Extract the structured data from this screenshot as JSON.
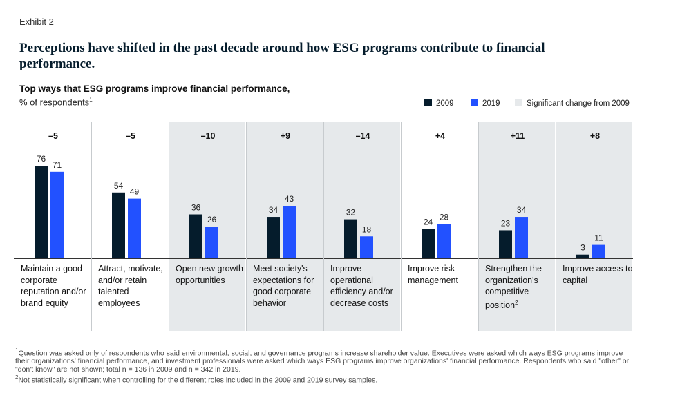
{
  "exhibit": "Exhibit 2",
  "title": "Perceptions have shifted in the past decade around how ESG programs contribute to financial performance.",
  "subtitle": "Top ways that ESG programs improve financial performance,",
  "unit": "% of respondents",
  "unit_note": "1",
  "legend": {
    "items": [
      {
        "name": "2009",
        "color": "#051c2c"
      },
      {
        "name": "2019",
        "color": "#2251ff"
      },
      {
        "name": "Significant change from 2009",
        "color": "#e6e9eb"
      }
    ]
  },
  "colors": {
    "series_2009": "#051c2c",
    "series_2019": "#2251ff",
    "highlight": "#e6e9eb",
    "axis": "#333333"
  },
  "chart_data": {
    "type": "bar",
    "ylim": [
      0,
      90
    ],
    "categories": [
      "Maintain a good corporate reputation and/or brand equity",
      "Attract, motivate, and/or retain talented employees",
      "Open new growth opportunities",
      "Meet society's expectations for good corporate behavior",
      "Improve operational efficiency and/or decrease costs",
      "Improve risk management",
      "Strengthen the organization's competitive position",
      "Improve access to capital"
    ],
    "category_notes": [
      "",
      "",
      "",
      "",
      "",
      "",
      "2",
      ""
    ],
    "series": [
      {
        "name": "2009",
        "values": [
          76,
          54,
          36,
          34,
          32,
          24,
          23,
          3
        ]
      },
      {
        "name": "2019",
        "values": [
          71,
          49,
          26,
          43,
          18,
          28,
          34,
          11
        ]
      }
    ],
    "changes": [
      "–5",
      "–5",
      "–10",
      "+9",
      "–14",
      "+4",
      "+11",
      "+8"
    ],
    "significant": [
      false,
      false,
      true,
      true,
      true,
      false,
      true,
      true
    ]
  },
  "footnotes": [
    {
      "mark": "1",
      "text": "Question was asked only of respondents who said environmental, social, and governance programs increase shareholder value. Executives were asked which ways ESG programs improve their organizations' financial performance, and investment professionals were asked which ways ESG programs improve organizations' financial performance. Respondents who said \"other\" or \"don't know\" are not shown; total n = 136 in 2009 and n = 342 in 2019."
    },
    {
      "mark": "2",
      "text": "Not statistically significant when controlling for the different roles included in the 2009 and 2019 survey samples."
    }
  ]
}
